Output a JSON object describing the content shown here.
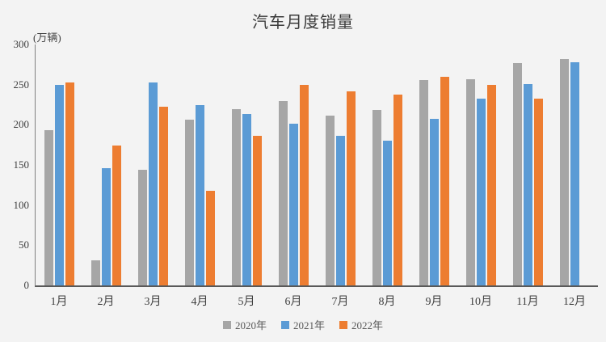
{
  "title": "汽车月度销量",
  "unit_label": "(万辆)",
  "colors": {
    "background": "#f3f3f3",
    "axis_line": "#595959",
    "text": "#404040",
    "series_gray": "#a6a6a6",
    "series_blue": "#5b9bd5",
    "series_orange": "#ed7d31"
  },
  "chart_data": {
    "type": "bar",
    "title": "汽车月度销量",
    "ylabel": "(万辆)",
    "xlabel": "",
    "categories": [
      "1月",
      "2月",
      "3月",
      "4月",
      "5月",
      "6月",
      "7月",
      "8月",
      "9月",
      "10月",
      "11月",
      "12月"
    ],
    "series": [
      {
        "name": "2020年",
        "color": "#a6a6a6",
        "values": [
          193,
          31,
          144,
          206,
          219,
          230,
          211,
          218,
          256,
          257,
          277,
          282
        ]
      },
      {
        "name": "2021年",
        "color": "#5b9bd5",
        "values": [
          250,
          146,
          253,
          225,
          213,
          201,
          186,
          180,
          207,
          233,
          251,
          278
        ]
      },
      {
        "name": "2022年",
        "color": "#ed7d31",
        "values": [
          253,
          174,
          223,
          118,
          186,
          250,
          242,
          238,
          260,
          250,
          233,
          null
        ]
      }
    ],
    "ylim": [
      0,
      300
    ],
    "ytick_step": 50,
    "yticks": [
      0,
      50,
      100,
      150,
      200,
      250,
      300
    ],
    "grid": false,
    "legend_position": "bottom"
  }
}
